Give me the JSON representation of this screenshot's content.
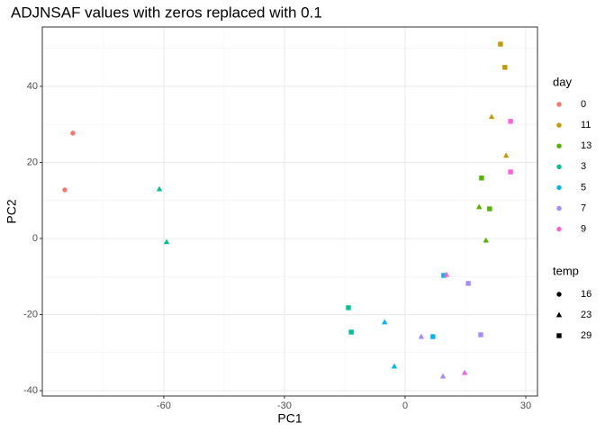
{
  "chart_data": {
    "type": "scatter",
    "title": "ADJNSAF values with zeros replaced with 0.1",
    "x_label": "PC1",
    "y_label": "PC2",
    "xlim": [
      -90.2,
      32.9
    ],
    "ylim": [
      -41.4,
      55.6
    ],
    "xticks": [
      -60,
      -30,
      0,
      30
    ],
    "yticks": [
      -40,
      -20,
      0,
      20,
      40
    ],
    "grid": true,
    "color_legend_title": "day",
    "shape_legend_title": "temp",
    "shape_legend": {
      "temps": [
        16,
        23,
        29
      ],
      "shapes": [
        "circle",
        "triangle",
        "square"
      ]
    },
    "series": [
      {
        "name": "0",
        "color": "#F8766D",
        "x": [
          -82.6,
          -84.6
        ],
        "y": [
          27.7,
          12.8
        ],
        "temp": [
          16,
          16
        ]
      },
      {
        "name": "11",
        "color": "#C49A00",
        "x": [
          23.7,
          24.8,
          21.5,
          25.1
        ],
        "y": [
          51.1,
          45.0,
          32.0,
          21.8
        ],
        "temp": [
          29,
          29,
          23,
          23
        ]
      },
      {
        "name": "13",
        "color": "#53B400",
        "x": [
          19.0,
          21.0,
          18.4,
          20.1
        ],
        "y": [
          15.9,
          7.8,
          8.3,
          -0.5
        ],
        "temp": [
          29,
          29,
          23,
          23
        ]
      },
      {
        "name": "3",
        "color": "#00C094",
        "x": [
          -61.1,
          -59.3,
          -14.1,
          -13.4
        ],
        "y": [
          13.0,
          -0.9,
          -18.2,
          -24.6
        ],
        "temp": [
          23,
          23,
          29,
          29
        ]
      },
      {
        "name": "5",
        "color": "#00B6EB",
        "x": [
          -5.1,
          -2.7,
          6.9,
          9.6
        ],
        "y": [
          -22.0,
          -33.6,
          -25.8,
          -9.7
        ],
        "temp": [
          23,
          23,
          29,
          29
        ]
      },
      {
        "name": "7",
        "color": "#A58AFF",
        "x": [
          15.7,
          4.0,
          18.8,
          9.4
        ],
        "y": [
          -11.8,
          -25.8,
          -25.3,
          -36.2
        ],
        "temp": [
          29,
          23,
          29,
          23
        ]
      },
      {
        "name": "9",
        "color": "#FB61D7",
        "x": [
          26.2,
          26.2,
          10.3,
          14.8
        ],
        "y": [
          30.8,
          17.5,
          -9.5,
          -35.3
        ],
        "temp": [
          29,
          29,
          23,
          23
        ]
      }
    ]
  }
}
